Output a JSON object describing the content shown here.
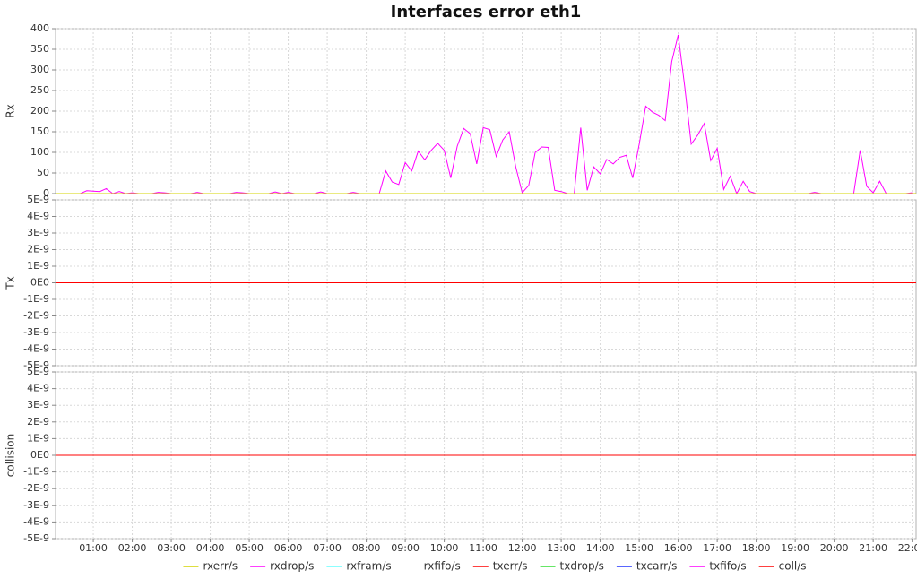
{
  "chart_data": [
    {
      "type": "line",
      "title": "Interfaces error eth1",
      "ylabel": "Rx",
      "xlim": [
        2,
        1326
      ],
      "ylim": [
        0,
        400
      ],
      "yticks": [
        0,
        50,
        100,
        150,
        200,
        250,
        300,
        350,
        400
      ],
      "grid": true,
      "x": [
        30,
        40,
        50,
        60,
        70,
        80,
        90,
        100,
        110,
        120,
        130,
        140,
        150,
        160,
        170,
        180,
        190,
        200,
        210,
        220,
        230,
        240,
        250,
        260,
        270,
        280,
        290,
        300,
        310,
        320,
        330,
        340,
        350,
        360,
        370,
        380,
        390,
        400,
        410,
        420,
        430,
        440,
        450,
        460,
        470,
        480,
        490,
        500,
        510,
        520,
        530,
        540,
        550,
        560,
        570,
        580,
        590,
        600,
        610,
        620,
        630,
        640,
        650,
        660,
        670,
        680,
        690,
        700,
        710,
        720,
        730,
        740,
        750,
        760,
        770,
        780,
        790,
        800,
        810,
        820,
        830,
        840,
        850,
        860,
        870,
        880,
        890,
        900,
        910,
        920,
        930,
        940,
        950,
        960,
        970,
        980,
        990,
        1000,
        1010,
        1020,
        1030,
        1040,
        1050,
        1060,
        1070,
        1080,
        1090,
        1100,
        1110,
        1120,
        1130,
        1140,
        1150,
        1160,
        1170,
        1180,
        1190,
        1200,
        1210,
        1220,
        1230,
        1240,
        1250,
        1260,
        1270,
        1280,
        1290,
        1300,
        1310,
        1320
      ],
      "series": [
        {
          "name": "rxerr/s",
          "color": "#d4d400",
          "x": [
            2,
            1326
          ],
          "values": [
            0,
            0
          ]
        },
        {
          "name": "rxdrop/s",
          "color": "#ff00ff",
          "values": [
            0,
            0,
            7,
            6,
            5,
            12,
            0,
            5,
            0,
            2,
            0,
            0,
            0,
            3,
            2,
            0,
            0,
            0,
            0,
            3,
            0,
            0,
            0,
            0,
            0,
            3,
            2,
            0,
            0,
            0,
            0,
            4,
            0,
            3,
            0,
            0,
            0,
            0,
            4,
            0,
            0,
            0,
            0,
            3,
            0,
            0,
            0,
            0,
            55,
            28,
            22,
            75,
            55,
            103,
            82,
            105,
            122,
            105,
            38,
            115,
            158,
            145,
            72,
            160,
            155,
            90,
            130,
            150,
            65,
            2,
            20,
            100,
            113,
            112,
            8,
            5,
            0,
            0,
            160,
            8,
            65,
            48,
            83,
            72,
            88,
            93,
            38,
            120,
            212,
            198,
            190,
            177,
            320,
            385,
            260,
            120,
            142,
            170,
            80,
            110,
            10,
            42,
            0,
            30,
            5,
            0,
            0,
            0,
            0,
            0,
            0,
            0,
            0,
            0,
            3,
            0,
            0,
            0,
            0,
            0,
            0,
            105,
            18,
            2,
            30,
            0,
            0,
            0,
            0,
            2
          ]
        },
        {
          "name": "rxfram/s",
          "color": "#66ffff",
          "x": [
            2,
            1326
          ],
          "values": [
            0,
            0
          ]
        },
        {
          "name": "rxfifo/s",
          "color": "#ffffff",
          "x": [
            2,
            1326
          ],
          "values": [
            0,
            0
          ]
        }
      ]
    },
    {
      "type": "line",
      "ylabel": "Tx",
      "xlim": [
        2,
        1326
      ],
      "ylim": [
        -5e-09,
        5e-09
      ],
      "grid": true,
      "yticks": [
        {
          "value": -5e-09,
          "label": "-5E-9"
        },
        {
          "value": -4e-09,
          "label": "-4E-9"
        },
        {
          "value": -3e-09,
          "label": "-3E-9"
        },
        {
          "value": -2e-09,
          "label": "-2E-9"
        },
        {
          "value": -1e-09,
          "label": "-1E-9"
        },
        {
          "value": 0,
          "label": "0E0"
        },
        {
          "value": 1e-09,
          "label": "1E-9"
        },
        {
          "value": 2e-09,
          "label": "2E-9"
        },
        {
          "value": 3e-09,
          "label": "3E-9"
        },
        {
          "value": 4e-09,
          "label": "4E-9"
        },
        {
          "value": 5e-09,
          "label": "5E-9"
        }
      ],
      "x": [
        2,
        1326
      ],
      "series": [
        {
          "name": "txerr/s",
          "color": "#ff0000",
          "values": [
            0,
            0
          ]
        },
        {
          "name": "txdrop/s",
          "color": "#33dd33",
          "values": [
            0,
            0
          ]
        },
        {
          "name": "txcarr/s",
          "color": "#2233ff",
          "values": [
            0,
            0
          ]
        },
        {
          "name": "txfifo/s",
          "color": "#ff00ff",
          "values": [
            0,
            0
          ]
        }
      ]
    },
    {
      "type": "line",
      "ylabel": "collision",
      "xlim": [
        2,
        1326
      ],
      "ylim": [
        -5e-09,
        5e-09
      ],
      "grid": true,
      "yticks": [
        {
          "value": -5e-09,
          "label": "-5E-9"
        },
        {
          "value": -4e-09,
          "label": "-4E-9"
        },
        {
          "value": -3e-09,
          "label": "-3E-9"
        },
        {
          "value": -2e-09,
          "label": "-2E-9"
        },
        {
          "value": -1e-09,
          "label": "-1E-9"
        },
        {
          "value": 0,
          "label": "0E0"
        },
        {
          "value": 1e-09,
          "label": "1E-9"
        },
        {
          "value": 2e-09,
          "label": "2E-9"
        },
        {
          "value": 3e-09,
          "label": "3E-9"
        },
        {
          "value": 4e-09,
          "label": "4E-9"
        },
        {
          "value": 5e-09,
          "label": "5E-9"
        }
      ],
      "xticks": [
        {
          "value": 60,
          "label": "01:00"
        },
        {
          "value": 120,
          "label": "02:00"
        },
        {
          "value": 180,
          "label": "03:00"
        },
        {
          "value": 240,
          "label": "04:00"
        },
        {
          "value": 300,
          "label": "05:00"
        },
        {
          "value": 360,
          "label": "06:00"
        },
        {
          "value": 420,
          "label": "07:00"
        },
        {
          "value": 480,
          "label": "08:00"
        },
        {
          "value": 540,
          "label": "09:00"
        },
        {
          "value": 600,
          "label": "10:00"
        },
        {
          "value": 660,
          "label": "11:00"
        },
        {
          "value": 720,
          "label": "12:00"
        },
        {
          "value": 780,
          "label": "13:00"
        },
        {
          "value": 840,
          "label": "14:00"
        },
        {
          "value": 900,
          "label": "15:00"
        },
        {
          "value": 960,
          "label": "16:00"
        },
        {
          "value": 1020,
          "label": "17:00"
        },
        {
          "value": 1080,
          "label": "18:00"
        },
        {
          "value": 1140,
          "label": "19:00"
        },
        {
          "value": 1200,
          "label": "20:00"
        },
        {
          "value": 1260,
          "label": "21:00"
        },
        {
          "value": 1320,
          "label": "22:00"
        }
      ],
      "x": [
        2,
        1326
      ],
      "series": [
        {
          "name": "coll/s",
          "color": "#ff0000",
          "values": [
            0,
            0
          ]
        }
      ]
    }
  ]
}
